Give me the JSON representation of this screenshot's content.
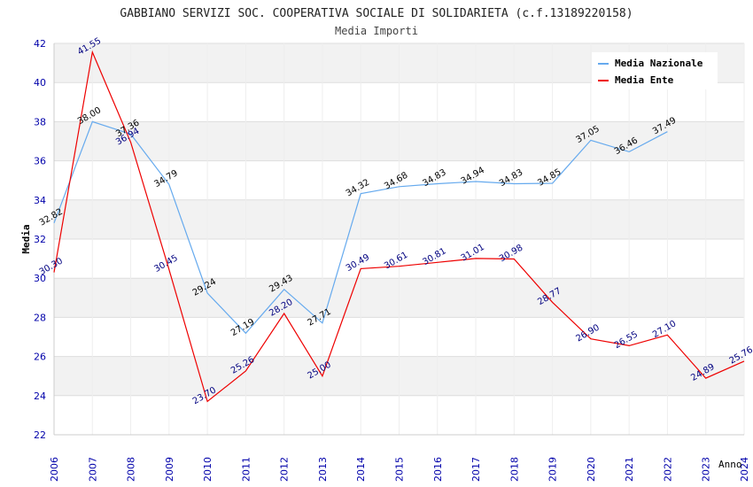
{
  "chart_data": {
    "type": "line",
    "title": "GABBIANO SERVIZI SOC. COOPERATIVA SOCIALE DI SOLIDARIETA (c.f.13189220158)",
    "subtitle": "Media Importi",
    "xlabel": "Anno",
    "ylabel": "Media",
    "ylim": [
      22,
      42
    ],
    "yticks": [
      "22",
      "24",
      "26",
      "28",
      "30",
      "32",
      "34",
      "36",
      "38",
      "40",
      "42"
    ],
    "categories": [
      "2006",
      "2007",
      "2008",
      "2009",
      "2010",
      "2011",
      "2012",
      "2013",
      "2014",
      "2015",
      "2016",
      "2017",
      "2018",
      "2019",
      "2020",
      "2021",
      "2022",
      "2023",
      "2024"
    ],
    "grid": true,
    "legend_position": "top-right",
    "series": [
      {
        "name": "Media Nazionale",
        "color": "#66aaee",
        "label_color": "#000000",
        "values": [
          32.82,
          38.0,
          37.36,
          34.79,
          29.24,
          27.19,
          29.43,
          27.71,
          34.32,
          34.68,
          34.83,
          34.94,
          34.83,
          34.85,
          37.05,
          36.46,
          37.49,
          null,
          null
        ],
        "labels": [
          "32.82",
          "38.00",
          "37.36",
          "34.79",
          "29.24",
          "27.19",
          "29.43",
          "27.71",
          "34.32",
          "34.68",
          "34.83",
          "34.94",
          "34.83",
          "34.85",
          "37.05",
          "36.46",
          "37.49",
          "",
          ""
        ]
      },
      {
        "name": "Media Ente",
        "color": "#ee0000",
        "label_color": "#000080",
        "values": [
          30.3,
          41.55,
          36.94,
          30.45,
          23.7,
          25.26,
          28.2,
          25.0,
          30.49,
          30.61,
          30.81,
          31.01,
          30.98,
          28.77,
          26.9,
          26.55,
          27.1,
          24.89,
          25.76
        ],
        "labels": [
          "30.30",
          "41.55",
          "36.94",
          "30.45",
          "23.70",
          "25.26",
          "28.20",
          "25.00",
          "30.49",
          "30.61",
          "30.81",
          "31.01",
          "30.98",
          "28.77",
          "26.90",
          "26.55",
          "27.10",
          "24.89",
          "25.76"
        ]
      }
    ]
  }
}
